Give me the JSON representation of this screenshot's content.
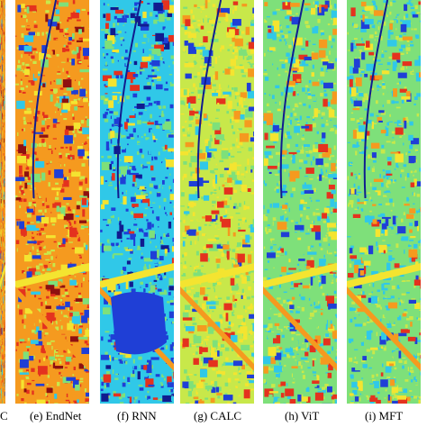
{
  "figure": {
    "panels": [
      {
        "caption": "C",
        "palette": "noisy-red",
        "seed": 11
      },
      {
        "caption": "(e) EndNet",
        "palette": "noisy-red",
        "seed": 23
      },
      {
        "caption": "(f) RNN",
        "palette": "blue-water",
        "seed": 37
      },
      {
        "caption": "(g) CALC",
        "palette": "yellow-green",
        "seed": 41
      },
      {
        "caption": "(h) ViT",
        "palette": "green-cyan",
        "seed": 53
      },
      {
        "caption": "(i) MFT",
        "palette": "green-cyan",
        "seed": 67
      }
    ],
    "colors": {
      "blue": "#1f3fd6",
      "dark_blue": "#101c8f",
      "cyan": "#30c8e8",
      "green": "#7ee07a",
      "yellow_green": "#c8e84a",
      "yellow": "#f4e430",
      "orange": "#f59a1f",
      "red": "#e4321e",
      "dark_red": "#8e1010"
    }
  }
}
